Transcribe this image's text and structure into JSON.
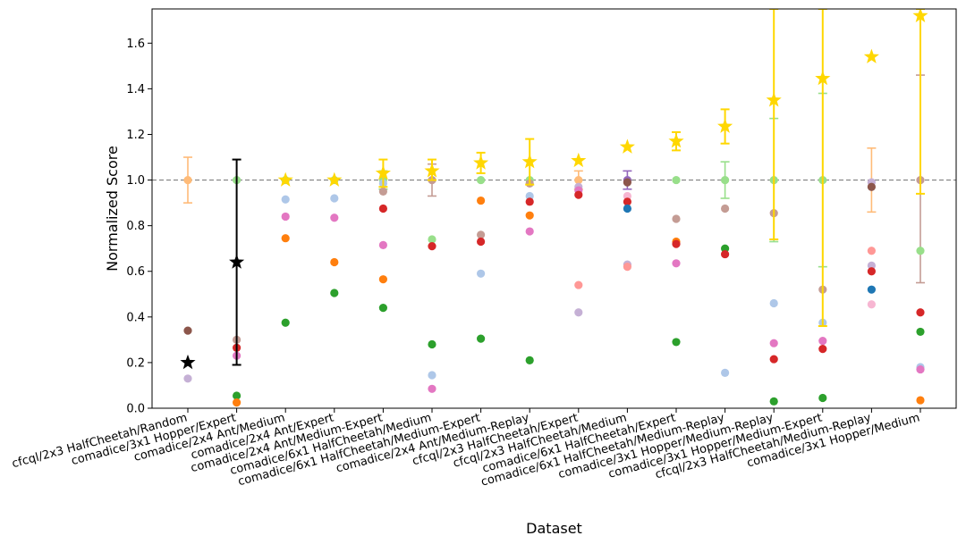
{
  "chart_data": {
    "type": "scatter",
    "xlabel": "Dataset",
    "ylabel": "Normalized Score",
    "ylim": [
      0.0,
      1.75
    ],
    "yticks": [
      0.0,
      0.2,
      0.4,
      0.6,
      0.8,
      1.0,
      1.2,
      1.4,
      1.6
    ],
    "ytick_labels": [
      "0.0",
      "0.2",
      "0.4",
      "0.6",
      "0.8",
      "1.0",
      "1.2",
      "1.4",
      "1.6"
    ],
    "grid": false,
    "reference_line": {
      "y": 1.0,
      "style": "dashed",
      "color": "#7f7f7f"
    },
    "categories": [
      "cfcql/2x3 HalfCheetah/Random",
      "comadice/3x1 Hopper/Expert",
      "comadice/2x4 Ant/Medium",
      "comadice/2x4 Ant/Expert",
      "comadice/2x4 Ant/Medium-Expert",
      "comadice/6x1 HalfCheetah/Medium",
      "comadice/6x1 HalfCheetah/Medium-Expert",
      "comadice/2x4 Ant/Medium-Replay",
      "cfcql/2x3 HalfCheetah/Expert",
      "cfcql/2x3 HalfCheetah/Medium",
      "comadice/6x1 HalfCheetah/Expert",
      "comadice/6x1 HalfCheetah/Medium-Replay",
      "comadice/3x1 Hopper/Medium-Replay",
      "comadice/3x1 Hopper/Medium-Expert",
      "cfcql/2x3 HalfCheetah/Medium-Replay",
      "comadice/3x1 Hopper/Medium"
    ],
    "stars": [
      {
        "x": 0,
        "y": 0.2,
        "color": "#000000"
      },
      {
        "x": 1,
        "y": 0.64,
        "color": "#000000",
        "err": [
          0.19,
          1.09
        ]
      },
      {
        "x": 2,
        "y": 1.0,
        "color": "#ffd700"
      },
      {
        "x": 3,
        "y": 1.0,
        "color": "#ffd700"
      },
      {
        "x": 4,
        "y": 1.03,
        "color": "#ffd700",
        "err": [
          0.97,
          1.09
        ]
      },
      {
        "x": 5,
        "y": 1.04,
        "color": "#ffd700",
        "err": [
          1.0,
          1.09
        ]
      },
      {
        "x": 6,
        "y": 1.075,
        "color": "#ffd700",
        "err": [
          1.03,
          1.12
        ]
      },
      {
        "x": 7,
        "y": 1.08,
        "color": "#ffd700",
        "err": [
          0.98,
          1.18
        ]
      },
      {
        "x": 8,
        "y": 1.085,
        "color": "#ffd700"
      },
      {
        "x": 9,
        "y": 1.145,
        "color": "#ffd700"
      },
      {
        "x": 10,
        "y": 1.17,
        "color": "#ffd700",
        "err": [
          1.13,
          1.21
        ]
      },
      {
        "x": 11,
        "y": 1.235,
        "color": "#ffd700",
        "err": [
          1.16,
          1.31
        ]
      },
      {
        "x": 12,
        "y": 1.35,
        "color": "#ffd700",
        "err": [
          0.74,
          1.75
        ]
      },
      {
        "x": 13,
        "y": 1.445,
        "color": "#ffd700",
        "err": [
          0.36,
          1.75
        ]
      },
      {
        "x": 14,
        "y": 1.54,
        "color": "#ffd700"
      },
      {
        "x": 15,
        "y": 1.72,
        "color": "#ffd700",
        "err": [
          0.94,
          1.75
        ]
      }
    ],
    "errorbars": [
      {
        "x": 0,
        "low": 0.9,
        "high": 1.1,
        "color": "#ffbb78"
      },
      {
        "x": 4,
        "low": 0.96,
        "high": 1.04,
        "color": "#98df8a"
      },
      {
        "x": 5,
        "low": 0.93,
        "high": 1.07,
        "color": "#c49c94"
      },
      {
        "x": 8,
        "low": 0.96,
        "high": 1.04,
        "color": "#ffbb78"
      },
      {
        "x": 9,
        "low": 0.96,
        "high": 1.04,
        "color": "#9467bd"
      },
      {
        "x": 11,
        "low": 0.92,
        "high": 1.08,
        "color": "#98df8a"
      },
      {
        "x": 12,
        "low": 0.73,
        "high": 1.27,
        "color": "#98df8a"
      },
      {
        "x": 13,
        "low": 0.62,
        "high": 1.38,
        "color": "#98df8a"
      },
      {
        "x": 14,
        "low": 0.86,
        "high": 1.14,
        "color": "#ffbb78"
      },
      {
        "x": 15,
        "low": 0.55,
        "high": 1.46,
        "color": "#c49c94"
      }
    ],
    "points": [
      {
        "x": 0,
        "y": 1.0,
        "color": "#ffbb78"
      },
      {
        "x": 0,
        "y": 0.34,
        "color": "#8c564b"
      },
      {
        "x": 0,
        "y": 0.13,
        "color": "#c5b0d5"
      },
      {
        "x": 1,
        "y": 1.0,
        "color": "#98df8a"
      },
      {
        "x": 1,
        "y": 0.3,
        "color": "#c49c94"
      },
      {
        "x": 1,
        "y": 0.265,
        "color": "#d62728"
      },
      {
        "x": 1,
        "y": 0.23,
        "color": "#e377c2"
      },
      {
        "x": 1,
        "y": 0.055,
        "color": "#2ca02c"
      },
      {
        "x": 1,
        "y": 0.025,
        "color": "#ff7f0e"
      },
      {
        "x": 2,
        "y": 1.0,
        "color": "#98df8a"
      },
      {
        "x": 2,
        "y": 0.915,
        "color": "#aec7e8"
      },
      {
        "x": 2,
        "y": 0.84,
        "color": "#e377c2"
      },
      {
        "x": 2,
        "y": 0.745,
        "color": "#ff7f0e"
      },
      {
        "x": 2,
        "y": 0.375,
        "color": "#2ca02c"
      },
      {
        "x": 3,
        "y": 1.0,
        "color": "#98df8a"
      },
      {
        "x": 3,
        "y": 0.92,
        "color": "#aec7e8"
      },
      {
        "x": 3,
        "y": 0.835,
        "color": "#e377c2"
      },
      {
        "x": 3,
        "y": 0.64,
        "color": "#ff7f0e"
      },
      {
        "x": 3,
        "y": 0.505,
        "color": "#2ca02c"
      },
      {
        "x": 4,
        "y": 1.0,
        "color": "#98df8a"
      },
      {
        "x": 4,
        "y": 0.985,
        "color": "#aec7e8"
      },
      {
        "x": 4,
        "y": 0.95,
        "color": "#c49c94"
      },
      {
        "x": 4,
        "y": 0.875,
        "color": "#d62728"
      },
      {
        "x": 4,
        "y": 0.715,
        "color": "#e377c2"
      },
      {
        "x": 4,
        "y": 0.565,
        "color": "#ff7f0e"
      },
      {
        "x": 4,
        "y": 0.44,
        "color": "#2ca02c"
      },
      {
        "x": 5,
        "y": 1.0,
        "color": "#c49c94"
      },
      {
        "x": 5,
        "y": 0.74,
        "color": "#98df8a"
      },
      {
        "x": 5,
        "y": 0.71,
        "color": "#d62728"
      },
      {
        "x": 5,
        "y": 0.28,
        "color": "#2ca02c"
      },
      {
        "x": 5,
        "y": 0.145,
        "color": "#aec7e8"
      },
      {
        "x": 5,
        "y": 0.085,
        "color": "#e377c2"
      },
      {
        "x": 6,
        "y": 1.0,
        "color": "#98df8a"
      },
      {
        "x": 6,
        "y": 0.91,
        "color": "#ff7f0e"
      },
      {
        "x": 6,
        "y": 0.76,
        "color": "#c49c94"
      },
      {
        "x": 6,
        "y": 0.73,
        "color": "#d62728"
      },
      {
        "x": 6,
        "y": 0.59,
        "color": "#aec7e8"
      },
      {
        "x": 6,
        "y": 0.305,
        "color": "#2ca02c"
      },
      {
        "x": 7,
        "y": 1.0,
        "color": "#98df8a"
      },
      {
        "x": 7,
        "y": 0.985,
        "color": "#c49c94"
      },
      {
        "x": 7,
        "y": 0.93,
        "color": "#aec7e8"
      },
      {
        "x": 7,
        "y": 0.905,
        "color": "#d62728"
      },
      {
        "x": 7,
        "y": 0.845,
        "color": "#ff7f0e"
      },
      {
        "x": 7,
        "y": 0.775,
        "color": "#e377c2"
      },
      {
        "x": 7,
        "y": 0.21,
        "color": "#2ca02c"
      },
      {
        "x": 8,
        "y": 1.0,
        "color": "#ffbb78"
      },
      {
        "x": 8,
        "y": 0.97,
        "color": "#c5b0d5"
      },
      {
        "x": 8,
        "y": 0.955,
        "color": "#e377c2"
      },
      {
        "x": 8,
        "y": 0.935,
        "color": "#d62728"
      },
      {
        "x": 8,
        "y": 0.54,
        "color": "#ff9896"
      },
      {
        "x": 8,
        "y": 0.42,
        "color": "#c5b0d5"
      },
      {
        "x": 9,
        "y": 1.0,
        "color": "#9467bd"
      },
      {
        "x": 9,
        "y": 0.99,
        "color": "#8c564b"
      },
      {
        "x": 9,
        "y": 0.93,
        "color": "#f7b6d2"
      },
      {
        "x": 9,
        "y": 0.905,
        "color": "#d62728"
      },
      {
        "x": 9,
        "y": 0.875,
        "color": "#1f77b4"
      },
      {
        "x": 9,
        "y": 0.63,
        "color": "#c5b0d5"
      },
      {
        "x": 9,
        "y": 0.62,
        "color": "#ff9896"
      },
      {
        "x": 10,
        "y": 1.0,
        "color": "#98df8a"
      },
      {
        "x": 10,
        "y": 0.83,
        "color": "#c49c94"
      },
      {
        "x": 10,
        "y": 0.73,
        "color": "#ff7f0e"
      },
      {
        "x": 10,
        "y": 0.72,
        "color": "#d62728"
      },
      {
        "x": 10,
        "y": 0.635,
        "color": "#e377c2"
      },
      {
        "x": 10,
        "y": 0.29,
        "color": "#2ca02c"
      },
      {
        "x": 11,
        "y": 1.0,
        "color": "#98df8a"
      },
      {
        "x": 11,
        "y": 0.875,
        "color": "#c49c94"
      },
      {
        "x": 11,
        "y": 0.7,
        "color": "#2ca02c"
      },
      {
        "x": 11,
        "y": 0.675,
        "color": "#d62728"
      },
      {
        "x": 11,
        "y": 0.155,
        "color": "#aec7e8"
      },
      {
        "x": 12,
        "y": 1.0,
        "color": "#98df8a"
      },
      {
        "x": 12,
        "y": 0.855,
        "color": "#c49c94"
      },
      {
        "x": 12,
        "y": 0.46,
        "color": "#aec7e8"
      },
      {
        "x": 12,
        "y": 0.285,
        "color": "#e377c2"
      },
      {
        "x": 12,
        "y": 0.215,
        "color": "#d62728"
      },
      {
        "x": 12,
        "y": 0.03,
        "color": "#2ca02c"
      },
      {
        "x": 13,
        "y": 1.0,
        "color": "#98df8a"
      },
      {
        "x": 13,
        "y": 0.52,
        "color": "#c49c94"
      },
      {
        "x": 13,
        "y": 0.375,
        "color": "#aec7e8"
      },
      {
        "x": 13,
        "y": 0.295,
        "color": "#e377c2"
      },
      {
        "x": 13,
        "y": 0.26,
        "color": "#d62728"
      },
      {
        "x": 13,
        "y": 0.045,
        "color": "#2ca02c"
      },
      {
        "x": 14,
        "y": 0.99,
        "color": "#c5b0d5"
      },
      {
        "x": 14,
        "y": 0.97,
        "color": "#8c564b"
      },
      {
        "x": 14,
        "y": 0.69,
        "color": "#ff9896"
      },
      {
        "x": 14,
        "y": 0.625,
        "color": "#c5b0d5"
      },
      {
        "x": 14,
        "y": 0.6,
        "color": "#d62728"
      },
      {
        "x": 14,
        "y": 0.52,
        "color": "#1f77b4"
      },
      {
        "x": 14,
        "y": 0.455,
        "color": "#f7b6d2"
      },
      {
        "x": 15,
        "y": 1.0,
        "color": "#c49c94"
      },
      {
        "x": 15,
        "y": 0.69,
        "color": "#98df8a"
      },
      {
        "x": 15,
        "y": 0.42,
        "color": "#d62728"
      },
      {
        "x": 15,
        "y": 0.335,
        "color": "#2ca02c"
      },
      {
        "x": 15,
        "y": 0.18,
        "color": "#aec7e8"
      },
      {
        "x": 15,
        "y": 0.17,
        "color": "#e377c2"
      },
      {
        "x": 15,
        "y": 0.035,
        "color": "#ff7f0e"
      }
    ]
  }
}
